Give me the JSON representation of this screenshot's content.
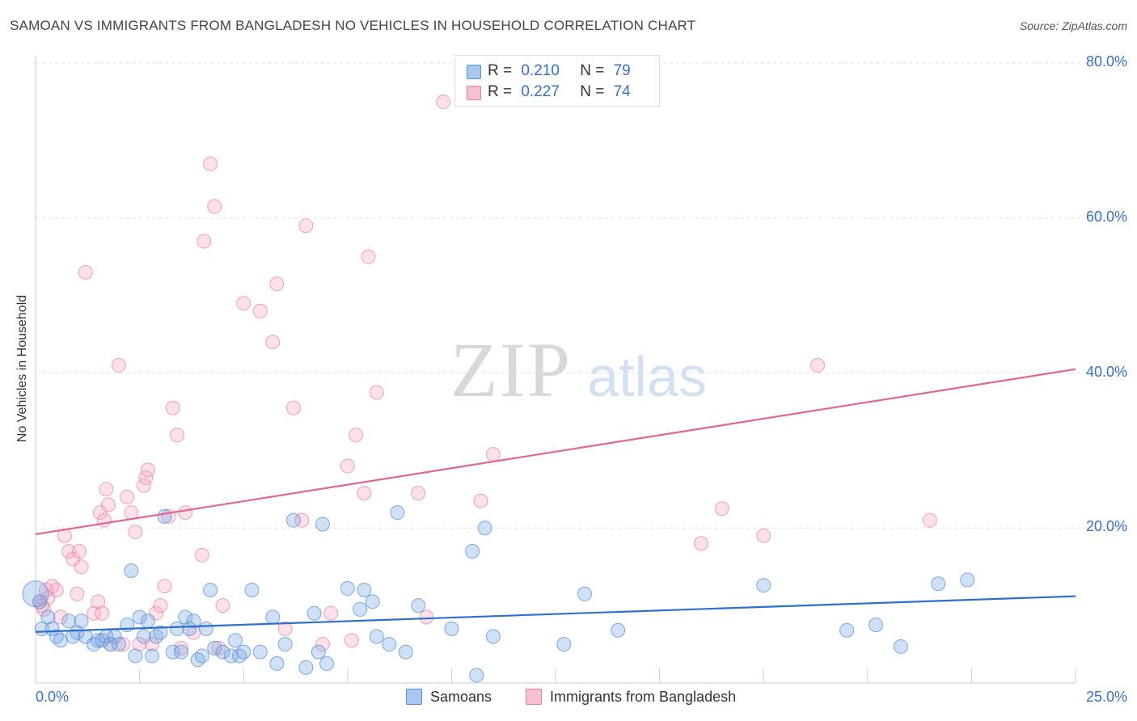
{
  "title": "SAMOAN VS IMMIGRANTS FROM BANGLADESH NO VEHICLES IN HOUSEHOLD CORRELATION CHART",
  "source": "Source: ZipAtlas.com",
  "watermark": {
    "zip": "ZIP",
    "atlas": "atlas"
  },
  "legend_top": {
    "r_label": "R =",
    "n_label": "N =",
    "rows": [
      {
        "r": "0.210",
        "n": "79",
        "color": "#a8c8f0",
        "border": "#5b8fd6"
      },
      {
        "r": "0.227",
        "n": "74",
        "color": "#f7c0d0",
        "border": "#e57fa0"
      }
    ]
  },
  "colors": {
    "blue_line": "#2f6fcc",
    "pink_line": "#e0678e",
    "blue_fill": "rgba(120,165,225,0.35)",
    "blue_stroke": "#5b8fd6",
    "pink_fill": "rgba(245,170,195,0.35)",
    "pink_stroke": "#e57fa0",
    "axis_text": "#3a6fc4",
    "grid": "#e3e3e3"
  },
  "chart_data": {
    "type": "scatter",
    "title": "SAMOAN VS IMMIGRANTS FROM BANGLADESH NO VEHICLES IN HOUSEHOLD CORRELATION CHART",
    "xlabel": "",
    "ylabel": "No Vehicles in Household",
    "xlim": [
      0,
      25
    ],
    "ylim": [
      0,
      80
    ],
    "x_tick_labels": [
      "0.0%",
      "25.0%"
    ],
    "y_ticks": [
      20,
      40,
      60,
      80
    ],
    "y_tick_labels": [
      "20.0%",
      "40.0%",
      "60.0%",
      "80.0%"
    ],
    "grid": true,
    "legend_position": "bottom",
    "series": [
      {
        "name": "Samoans",
        "trend": [
          [
            0,
            6.6
          ],
          [
            25,
            11.2
          ]
        ],
        "points": [
          [
            0.0,
            11.5
          ],
          [
            0.15,
            7.0
          ],
          [
            0.3,
            8.5
          ],
          [
            0.4,
            7.0
          ],
          [
            0.5,
            6.0
          ],
          [
            0.6,
            5.5
          ],
          [
            0.8,
            8.0
          ],
          [
            0.9,
            6.0
          ],
          [
            1.0,
            6.5
          ],
          [
            1.1,
            8.0
          ],
          [
            1.2,
            6.0
          ],
          [
            1.4,
            5.0
          ],
          [
            1.5,
            5.5
          ],
          [
            1.6,
            5.5
          ],
          [
            1.7,
            6.0
          ],
          [
            1.8,
            5.0
          ],
          [
            1.9,
            6.0
          ],
          [
            2.0,
            5.0
          ],
          [
            2.2,
            7.5
          ],
          [
            2.3,
            14.5
          ],
          [
            2.4,
            3.5
          ],
          [
            2.5,
            8.5
          ],
          [
            2.6,
            6.0
          ],
          [
            2.7,
            8.0
          ],
          [
            2.8,
            3.5
          ],
          [
            2.9,
            6.0
          ],
          [
            3.0,
            6.5
          ],
          [
            3.1,
            21.5
          ],
          [
            3.3,
            4.0
          ],
          [
            3.4,
            7.0
          ],
          [
            3.5,
            4.0
          ],
          [
            3.6,
            8.5
          ],
          [
            3.7,
            7.0
          ],
          [
            3.8,
            8.0
          ],
          [
            3.9,
            3.0
          ],
          [
            4.0,
            3.5
          ],
          [
            4.1,
            7.0
          ],
          [
            4.2,
            12.0
          ],
          [
            4.3,
            4.5
          ],
          [
            4.5,
            4.0
          ],
          [
            4.7,
            3.5
          ],
          [
            4.8,
            5.5
          ],
          [
            4.9,
            3.5
          ],
          [
            5.0,
            4.0
          ],
          [
            5.2,
            12.0
          ],
          [
            5.4,
            4.0
          ],
          [
            5.7,
            8.5
          ],
          [
            5.8,
            2.5
          ],
          [
            6.0,
            5.0
          ],
          [
            6.2,
            21.0
          ],
          [
            6.5,
            2.0
          ],
          [
            6.7,
            9.0
          ],
          [
            6.9,
            20.5
          ],
          [
            6.8,
            4.0
          ],
          [
            7.0,
            2.5
          ],
          [
            7.5,
            12.2
          ],
          [
            7.8,
            9.5
          ],
          [
            7.9,
            12.0
          ],
          [
            8.1,
            10.5
          ],
          [
            8.2,
            6.0
          ],
          [
            8.5,
            5.0
          ],
          [
            8.7,
            22.0
          ],
          [
            8.9,
            4.0
          ],
          [
            9.2,
            10.0
          ],
          [
            10.0,
            7.0
          ],
          [
            10.5,
            17.0
          ],
          [
            10.6,
            1.0
          ],
          [
            10.8,
            20.0
          ],
          [
            11.0,
            6.0
          ],
          [
            12.7,
            5.0
          ],
          [
            13.2,
            11.5
          ],
          [
            14.0,
            6.8
          ],
          [
            17.5,
            12.6
          ],
          [
            19.5,
            6.8
          ],
          [
            20.2,
            7.5
          ],
          [
            20.8,
            4.7
          ],
          [
            21.7,
            12.8
          ],
          [
            22.4,
            13.3
          ],
          [
            0.1,
            10.5
          ]
        ]
      },
      {
        "name": "Immigrants from Bangladesh",
        "trend": [
          [
            0,
            19.2
          ],
          [
            25,
            40.5
          ]
        ],
        "points": [
          [
            0.1,
            10.5
          ],
          [
            0.2,
            9.5
          ],
          [
            0.3,
            11.0
          ],
          [
            0.4,
            12.5
          ],
          [
            0.5,
            12.0
          ],
          [
            0.6,
            8.5
          ],
          [
            0.7,
            19.0
          ],
          [
            0.8,
            17.0
          ],
          [
            0.9,
            16.0
          ],
          [
            1.0,
            11.5
          ],
          [
            1.05,
            17.0
          ],
          [
            1.1,
            15.0
          ],
          [
            1.2,
            53.0
          ],
          [
            1.4,
            9.0
          ],
          [
            1.5,
            10.5
          ],
          [
            1.55,
            22.0
          ],
          [
            1.6,
            9.0
          ],
          [
            1.65,
            21.0
          ],
          [
            1.7,
            25.0
          ],
          [
            1.75,
            23.0
          ],
          [
            1.8,
            5.0
          ],
          [
            2.0,
            41.0
          ],
          [
            2.1,
            5.0
          ],
          [
            2.2,
            24.0
          ],
          [
            2.3,
            22.0
          ],
          [
            2.4,
            19.5
          ],
          [
            2.5,
            5.0
          ],
          [
            2.6,
            25.5
          ],
          [
            2.65,
            26.5
          ],
          [
            2.7,
            27.5
          ],
          [
            2.8,
            5.0
          ],
          [
            2.9,
            9.0
          ],
          [
            3.0,
            10.0
          ],
          [
            3.1,
            12.5
          ],
          [
            3.2,
            21.5
          ],
          [
            3.3,
            35.5
          ],
          [
            3.4,
            32.0
          ],
          [
            3.5,
            4.5
          ],
          [
            3.6,
            22.0
          ],
          [
            3.8,
            6.5
          ],
          [
            4.0,
            16.5
          ],
          [
            4.05,
            57.0
          ],
          [
            4.2,
            67.0
          ],
          [
            4.3,
            61.5
          ],
          [
            4.4,
            4.5
          ],
          [
            4.5,
            10.0
          ],
          [
            5.0,
            49.0
          ],
          [
            5.4,
            48.0
          ],
          [
            5.7,
            44.0
          ],
          [
            5.8,
            51.5
          ],
          [
            6.0,
            7.0
          ],
          [
            6.2,
            35.5
          ],
          [
            6.4,
            21.0
          ],
          [
            6.5,
            59.0
          ],
          [
            6.9,
            5.0
          ],
          [
            7.1,
            9.0
          ],
          [
            7.5,
            28.0
          ],
          [
            7.6,
            5.5
          ],
          [
            7.7,
            32.0
          ],
          [
            7.9,
            24.5
          ],
          [
            8.0,
            55.0
          ],
          [
            8.2,
            37.5
          ],
          [
            9.2,
            24.5
          ],
          [
            9.4,
            8.5
          ],
          [
            9.8,
            75.0
          ],
          [
            10.7,
            23.5
          ],
          [
            11.0,
            29.5
          ],
          [
            16.0,
            18.0
          ],
          [
            16.5,
            22.5
          ],
          [
            17.5,
            19.0
          ],
          [
            18.8,
            41.0
          ],
          [
            21.5,
            21.0
          ],
          [
            0.15,
            10.0
          ],
          [
            0.25,
            12.0
          ]
        ]
      }
    ]
  },
  "bottom_legend": [
    {
      "label": "Samoans"
    },
    {
      "label": "Immigrants from Bangladesh"
    }
  ]
}
